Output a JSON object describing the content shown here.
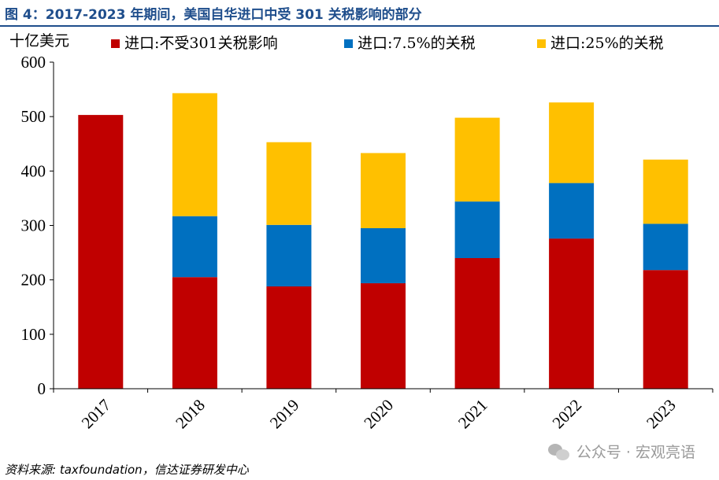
{
  "title": "图 4：2017-2023 年期间，美国自华进口中受 301 关税影响的部分",
  "source": "资料来源: taxfoundation，信达证券研发中心",
  "watermark": {
    "icon": "wechat-icon",
    "text": "公众号 · 宏观亮语"
  },
  "chart_data": {
    "type": "bar",
    "stacked": true,
    "categories": [
      "2017",
      "2018",
      "2019",
      "2020",
      "2021",
      "2022",
      "2023"
    ],
    "series": [
      {
        "name": "进口:不受301关税影响",
        "color": "#c00000",
        "values": [
          503,
          205,
          188,
          194,
          240,
          276,
          218
        ]
      },
      {
        "name": "进口:7.5%的关税",
        "color": "#0070c0",
        "values": [
          0,
          112,
          113,
          101,
          104,
          102,
          85
        ]
      },
      {
        "name": "进口:25%的关税",
        "color": "#ffc000",
        "values": [
          0,
          226,
          152,
          138,
          154,
          148,
          118
        ]
      }
    ],
    "ylabel": "十亿美元",
    "ylim": [
      0,
      600
    ],
    "yticks": [
      0,
      100,
      200,
      300,
      400,
      500,
      600
    ],
    "legend_position": "top",
    "grid": false
  }
}
